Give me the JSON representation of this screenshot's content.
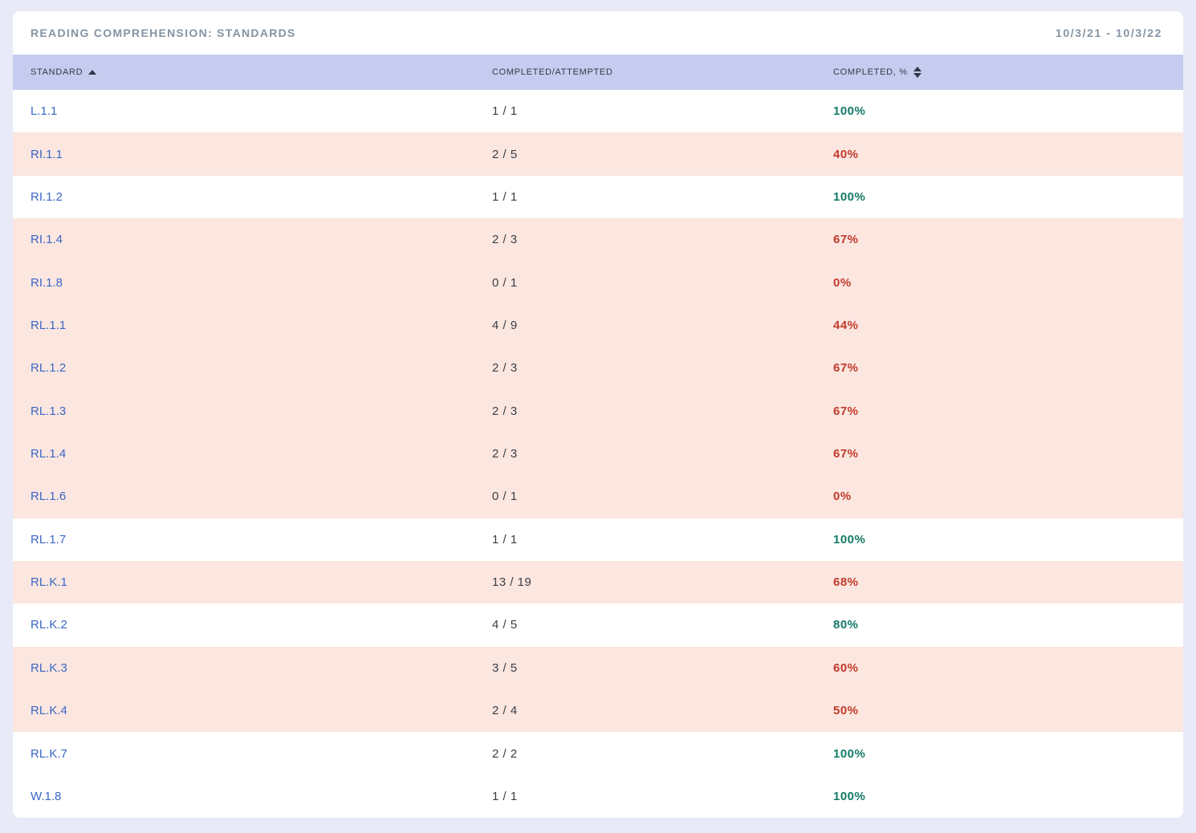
{
  "report": {
    "title": "READING COMPREHENSION: STANDARDS",
    "date_range": "10/3/21 - 10/3/22"
  },
  "table": {
    "columns": [
      {
        "label": "STANDARD",
        "sort_icon": "sort-ascending-icon",
        "sort_state": "ascending"
      },
      {
        "label": "COMPLETED/ATTEMPTED",
        "sort_icon": null,
        "sort_state": "none"
      },
      {
        "label": "COMPLETED, %",
        "sort_icon": "sort-both-icon",
        "sort_state": "unsorted"
      }
    ],
    "rows": [
      {
        "standard": "L.1.1",
        "completed_attempted": "1 / 1",
        "percent": "100%",
        "status": "pass"
      },
      {
        "standard": "RI.1.1",
        "completed_attempted": "2 / 5",
        "percent": "40%",
        "status": "fail"
      },
      {
        "standard": "RI.1.2",
        "completed_attempted": "1 / 1",
        "percent": "100%",
        "status": "pass"
      },
      {
        "standard": "RI.1.4",
        "completed_attempted": "2 / 3",
        "percent": "67%",
        "status": "fail"
      },
      {
        "standard": "RI.1.8",
        "completed_attempted": "0 / 1",
        "percent": "0%",
        "status": "fail"
      },
      {
        "standard": "RL.1.1",
        "completed_attempted": "4 / 9",
        "percent": "44%",
        "status": "fail"
      },
      {
        "standard": "RL.1.2",
        "completed_attempted": "2 / 3",
        "percent": "67%",
        "status": "fail"
      },
      {
        "standard": "RL.1.3",
        "completed_attempted": "2 / 3",
        "percent": "67%",
        "status": "fail"
      },
      {
        "standard": "RL.1.4",
        "completed_attempted": "2 / 3",
        "percent": "67%",
        "status": "fail"
      },
      {
        "standard": "RL.1.6",
        "completed_attempted": "0 / 1",
        "percent": "0%",
        "status": "fail"
      },
      {
        "standard": "RL.1.7",
        "completed_attempted": "1 / 1",
        "percent": "100%",
        "status": "pass"
      },
      {
        "standard": "RL.K.1",
        "completed_attempted": "13 / 19",
        "percent": "68%",
        "status": "fail"
      },
      {
        "standard": "RL.K.2",
        "completed_attempted": "4 / 5",
        "percent": "80%",
        "status": "pass"
      },
      {
        "standard": "RL.K.3",
        "completed_attempted": "3 / 5",
        "percent": "60%",
        "status": "fail"
      },
      {
        "standard": "RL.K.4",
        "completed_attempted": "2 / 4",
        "percent": "50%",
        "status": "fail"
      },
      {
        "standard": "RL.K.7",
        "completed_attempted": "2 / 2",
        "percent": "100%",
        "status": "pass"
      },
      {
        "standard": "W.1.8",
        "completed_attempted": "1 / 1",
        "percent": "100%",
        "status": "pass"
      }
    ]
  },
  "colors": {
    "page_background": "#e8eaf7",
    "card_background": "#ffffff",
    "table_header_background": "#c6ccef",
    "fail_row_background": "#fce6e0",
    "standard_link_blue": "#3a67c5",
    "pass_percent_green": "#147a65",
    "fail_percent_red": "#c23b2b",
    "muted_title_gray": "#8494a3",
    "header_text_dark": "#333a46"
  }
}
